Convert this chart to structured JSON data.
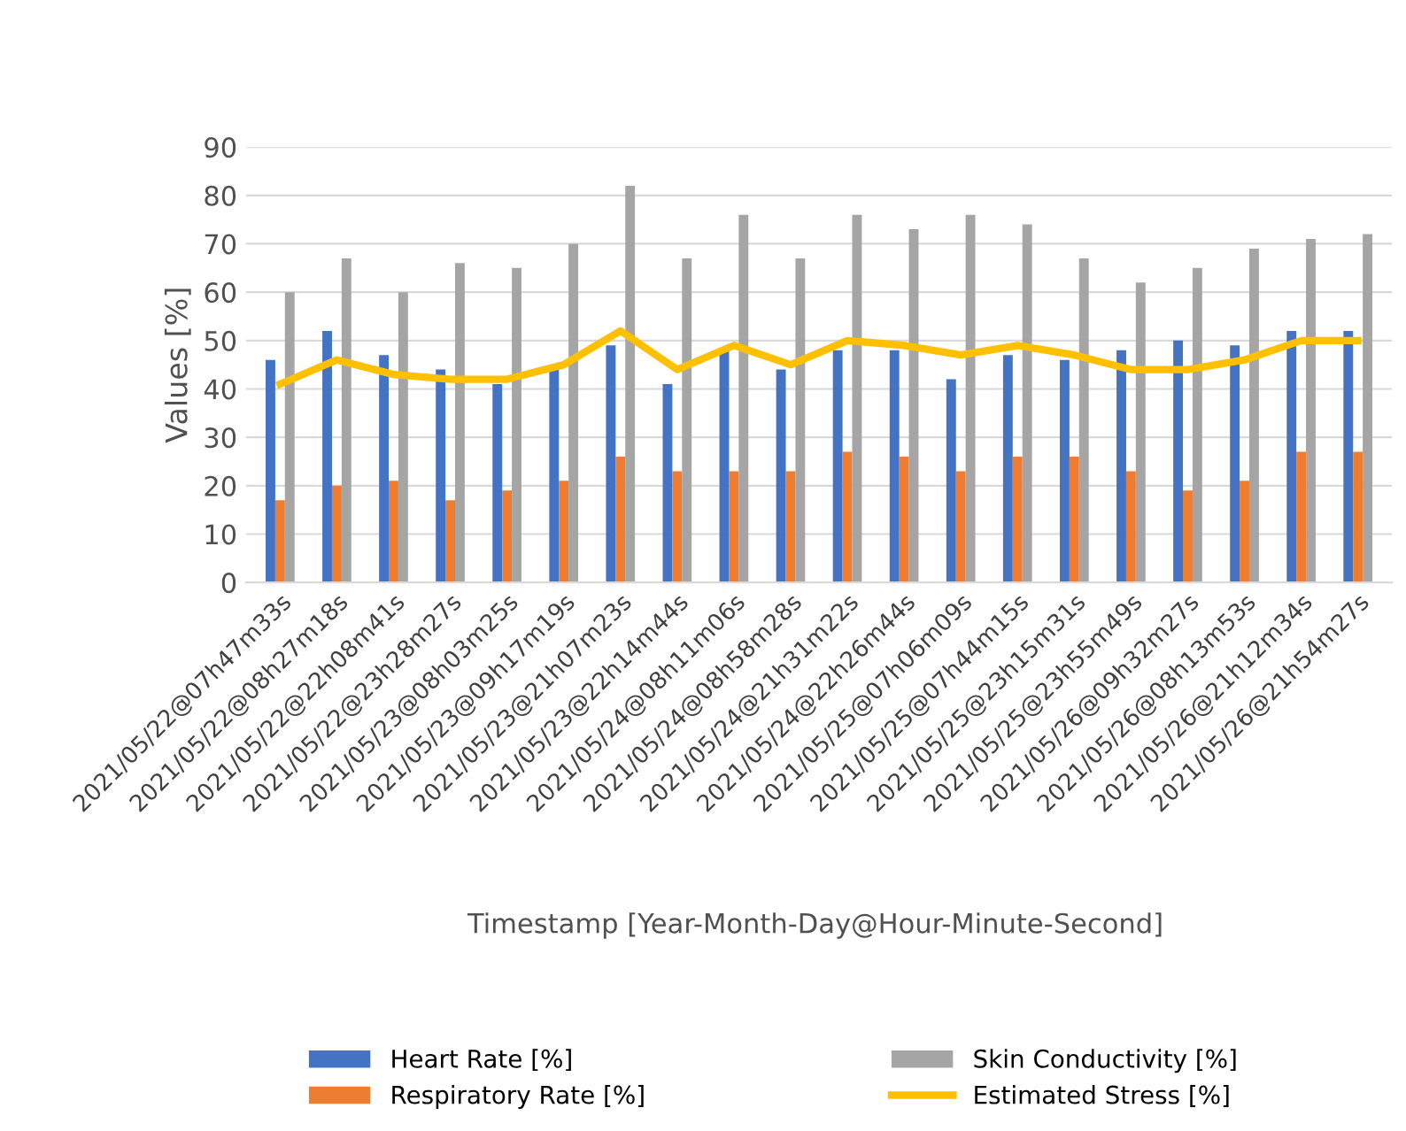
{
  "chart_data": {
    "type": "bar",
    "xlabel": "Timestamp [Year-Month-Day@Hour-Minute-Second]",
    "ylabel": "Values [%]",
    "categories": [
      "2021/05/22@07h47m33s",
      "2021/05/22@08h27m18s",
      "2021/05/22@22h08m41s",
      "2021/05/22@23h28m27s",
      "2021/05/23@08h03m25s",
      "2021/05/23@09h17m19s",
      "2021/05/23@21h07m23s",
      "2021/05/23@22h14m44s",
      "2021/05/24@08h11m06s",
      "2021/05/24@08h58m28s",
      "2021/05/24@21h31m22s",
      "2021/05/24@22h26m44s",
      "2021/05/25@07h06m09s",
      "2021/05/25@07h44m15s",
      "2021/05/25@23h15m31s",
      "2021/05/25@23h55m49s",
      "2021/05/26@09h32m27s",
      "2021/05/26@08h13m53s",
      "2021/05/26@21h12m34s",
      "2021/05/26@21h54m27s"
    ],
    "series": [
      {
        "name": "Heart Rate [%]",
        "color": "#4472c4",
        "values": [
          46,
          52,
          47,
          44,
          41,
          44,
          49,
          41,
          48,
          44,
          48,
          48,
          42,
          47,
          46,
          48,
          50,
          49,
          52,
          52
        ]
      },
      {
        "name": "Respiratory Rate [%]",
        "color": "#ed7d31",
        "values": [
          17,
          20,
          21,
          17,
          19,
          21,
          26,
          23,
          23,
          23,
          27,
          26,
          23,
          26,
          26,
          23,
          19,
          21,
          27,
          27
        ]
      },
      {
        "name": "Skin Conductivity [%]",
        "color": "#a5a5a5",
        "values": [
          60,
          67,
          60,
          66,
          65,
          70,
          82,
          67,
          76,
          67,
          76,
          73,
          76,
          74,
          67,
          62,
          65,
          69,
          71,
          72
        ]
      },
      {
        "name": "Estimated Stress [%]",
        "color": "#ffc000",
        "type": "line",
        "values": [
          41,
          46,
          43,
          42,
          42,
          45,
          52,
          44,
          49,
          45,
          50,
          49,
          47,
          49,
          47,
          44,
          44,
          46,
          50,
          50
        ]
      }
    ],
    "ylim": [
      0,
      90
    ],
    "yticks": [
      0,
      10,
      20,
      30,
      40,
      50,
      60,
      70,
      80,
      90
    ],
    "grid": "y",
    "legend": "bottom"
  }
}
